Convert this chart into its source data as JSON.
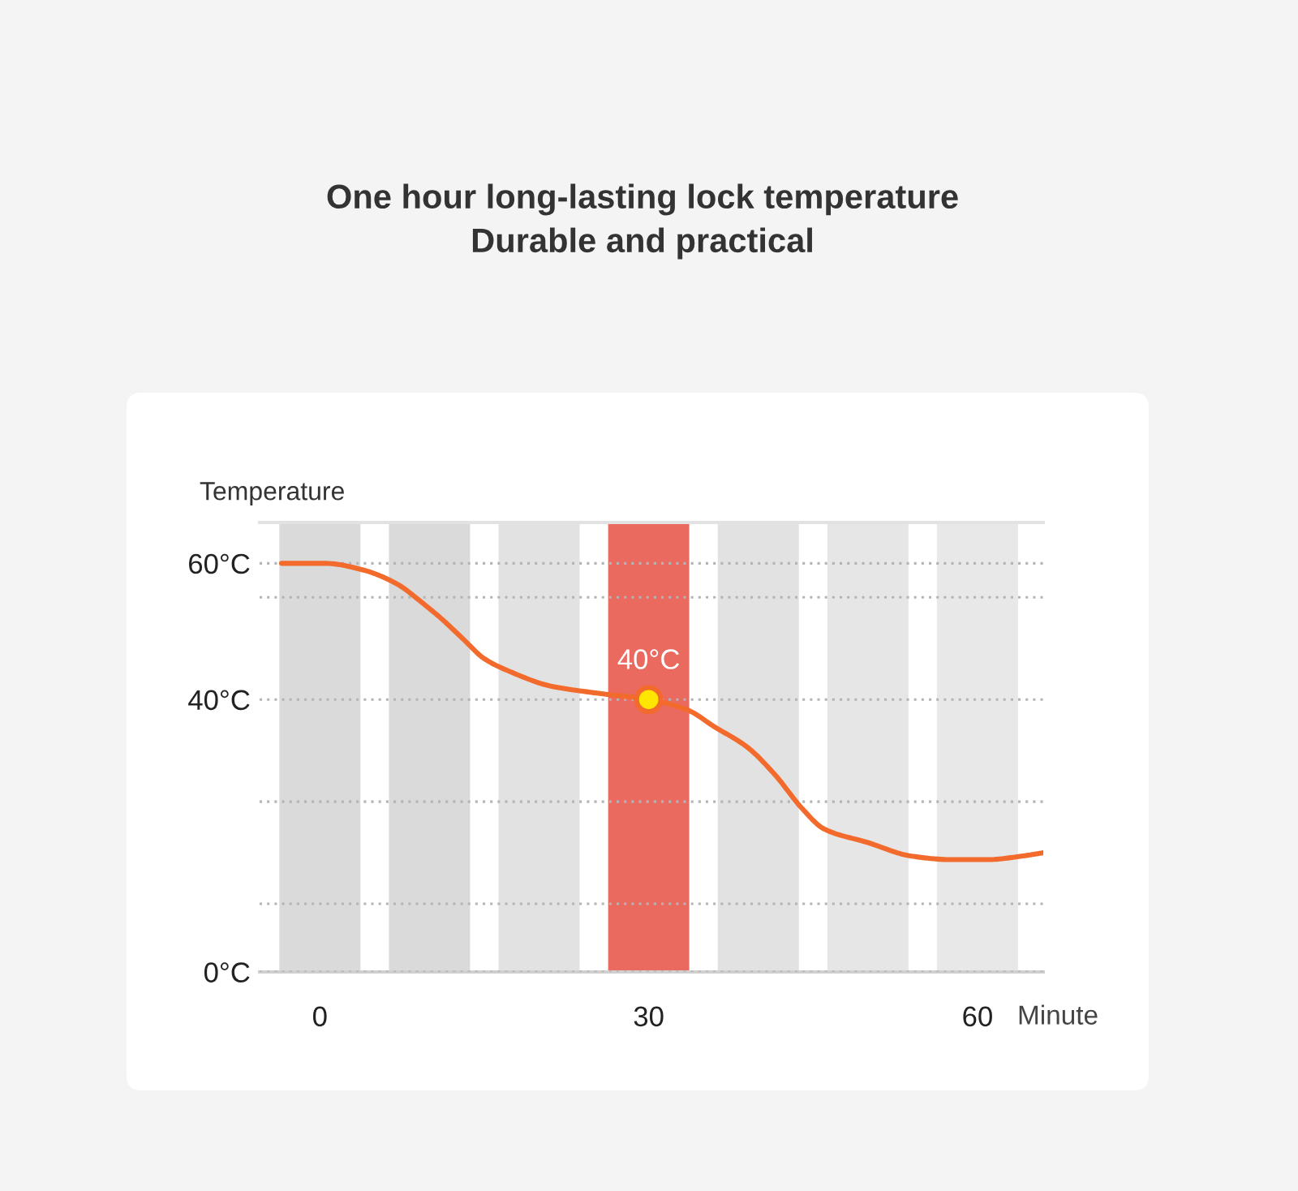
{
  "chart_data": {
    "type": "line",
    "title": "One hour long-lasting lock temperature",
    "subtitle": "Durable and practical",
    "xlabel": "Minute",
    "ylabel": "Temperature",
    "xlim": [
      -5.5,
      66
    ],
    "xticks": [
      0,
      30,
      60
    ],
    "ylim": [
      0,
      66
    ],
    "yticks": [
      {
        "value": 0,
        "label": "0°C"
      },
      {
        "value": 10,
        "label": null
      },
      {
        "value": 25,
        "label": null
      },
      {
        "value": 40,
        "label": "40°C"
      },
      {
        "value": 55,
        "label": null
      },
      {
        "value": 60,
        "label": "60°C"
      }
    ],
    "grid": "y",
    "bands": [
      {
        "axis": "x",
        "from": -3.7,
        "to": 3.7,
        "color": "#dadada"
      },
      {
        "axis": "x",
        "from": 6.3,
        "to": 13.7,
        "color": "#dadada"
      },
      {
        "axis": "x",
        "from": 16.3,
        "to": 23.7,
        "color": "#e2e2e2"
      },
      {
        "axis": "x",
        "from": 26.3,
        "to": 33.7,
        "color": "#ea6a60"
      },
      {
        "axis": "x",
        "from": 36.3,
        "to": 43.7,
        "color": "#e2e2e2"
      },
      {
        "axis": "x",
        "from": 46.3,
        "to": 53.7,
        "color": "#e6e6e6"
      },
      {
        "axis": "x",
        "from": 56.3,
        "to": 63.7,
        "color": "#e8e8e8"
      }
    ],
    "series": [
      {
        "color": "#f26b2d",
        "x": [
          -3.5,
          0.5,
          4,
          7,
          9.5,
          11,
          13,
          15,
          17.5,
          21,
          25,
          30,
          33.5,
          36,
          39,
          41.5,
          44,
          46,
          50,
          54,
          57.5,
          61,
          64,
          66
        ],
        "values": [
          60,
          60,
          59,
          57,
          54,
          52,
          49,
          46,
          44,
          42,
          41,
          40,
          38.5,
          36,
          33,
          29,
          24,
          21,
          19,
          17,
          16.5,
          16.5,
          17,
          17.5
        ]
      },
      {
        "type": "scatter",
        "color": "#ffe600",
        "marker": "circle",
        "x": [
          30
        ],
        "values": [
          40
        ],
        "value_labels": [
          "40°C"
        ]
      }
    ]
  }
}
